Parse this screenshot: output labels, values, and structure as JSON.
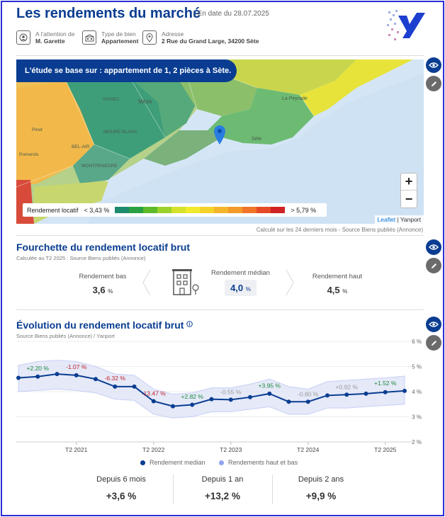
{
  "header": {
    "title": "Les rendements du marché",
    "date": "En date du 28.07.2025",
    "attention_label": "A l'attention de",
    "attention_value": "M. Garette",
    "type_label": "Type de bien",
    "type_value": "Appartement",
    "address_label": "Adresse",
    "address_value": "2 Rue du Grand Large, 34200 Sète"
  },
  "map": {
    "banner": "L'étude se base sur :  appartement de 1, 2 pièces à Sète.",
    "places": [
      "VISSEC",
      "Mèze",
      "La Peyrade",
      "Sète",
      "MOURE BLANC",
      "Pinet",
      "BEL-AIR",
      "MONTPENEDRE",
      "Pomerols"
    ],
    "legend_label": "Rendement locatif",
    "legend_min": "< 3,43 %",
    "legend_max": "> 5,79 %",
    "legend_colors": [
      "#1e8a6e",
      "#2aa043",
      "#5dbb2a",
      "#9bd12a",
      "#d4e22b",
      "#f1e92b",
      "#f5d22a",
      "#f5b52a",
      "#f39a2a",
      "#ef7529",
      "#e54a26",
      "#cf2222"
    ],
    "zoom_in": "+",
    "zoom_out": "−",
    "attribution_leaflet": "Leaflet",
    "attribution_sep": " | ",
    "attribution_yanport": "Yanport",
    "note": "Calculé sur les 24 derniers mois - Source Biens publiés (Annonce)"
  },
  "range": {
    "title": "Fourchette du rendement locatif brut",
    "subtitle": "Calculée au T2 2025 : Source Biens publiés (Annonce)",
    "low_label": "Rendement bas",
    "low_value": "3,6",
    "median_label": "Rendement médian",
    "median_value": "4,0",
    "high_label": "Rendement haut",
    "high_value": "4,5",
    "unit": "%"
  },
  "evolution": {
    "title": "Évolution du rendement locatif brut",
    "subtitle": "Source Biens publiés (Annonce) / Yanport",
    "legend_median": "Rendement median",
    "legend_band": "Rendements haut et bas"
  },
  "chart_data": {
    "type": "line",
    "x_ticks": [
      "T2 2021",
      "T2 2022",
      "T2 2023",
      "T2 2024",
      "T2 2025"
    ],
    "y_ticks": [
      "2 %",
      "3 %",
      "4 %",
      "5 %",
      "6 %"
    ],
    "ylim": [
      2,
      6
    ],
    "x": [
      2020.3,
      2020.55,
      2020.8,
      2021.05,
      2021.3,
      2021.55,
      2021.8,
      2022.05,
      2022.3,
      2022.55,
      2022.8,
      2023.05,
      2023.3,
      2023.55,
      2023.8,
      2024.05,
      2024.3,
      2024.55,
      2024.8,
      2025.05,
      2025.3
    ],
    "series": [
      {
        "name": "Rendement median",
        "values": [
          4.55,
          4.6,
          4.7,
          4.65,
          4.5,
          4.2,
          4.2,
          3.62,
          3.42,
          3.48,
          3.7,
          3.68,
          3.78,
          3.92,
          3.6,
          3.6,
          3.85,
          3.88,
          3.92,
          3.98,
          4.03
        ]
      },
      {
        "name": "Rendements haut et bas",
        "high": [
          5.05,
          5.2,
          5.25,
          5.2,
          5.0,
          4.7,
          4.65,
          4.1,
          3.9,
          3.95,
          4.15,
          4.15,
          4.3,
          4.5,
          4.2,
          4.1,
          4.4,
          4.45,
          4.5,
          4.55,
          4.62
        ],
        "low": [
          4.0,
          4.05,
          4.1,
          4.05,
          3.95,
          3.7,
          3.65,
          3.1,
          2.95,
          3.0,
          3.2,
          3.2,
          3.3,
          3.4,
          3.1,
          3.1,
          3.35,
          3.35,
          3.4,
          3.45,
          3.5
        ]
      }
    ],
    "annotations": [
      {
        "text": "+2.20 %",
        "x": 2020.55,
        "y": 4.85,
        "color": "#1a8a3a"
      },
      {
        "text": "-1.07 %",
        "x": 2021.05,
        "y": 4.9,
        "color": "#c21f2a"
      },
      {
        "text": "-6.32 %",
        "x": 2021.55,
        "y": 4.45,
        "color": "#c21f2a"
      },
      {
        "text": "-13.47 %",
        "x": 2022.05,
        "y": 3.85,
        "color": "#c21f2a"
      },
      {
        "text": "+2.82 %",
        "x": 2022.55,
        "y": 3.72,
        "color": "#1a8a3a"
      },
      {
        "text": "-0.55 %",
        "x": 2023.05,
        "y": 3.9,
        "color": "#9a9a9a"
      },
      {
        "text": "+3.95 %",
        "x": 2023.55,
        "y": 4.15,
        "color": "#1a8a3a"
      },
      {
        "text": "-0.80 %",
        "x": 2024.05,
        "y": 3.82,
        "color": "#9a9a9a"
      },
      {
        "text": "+0.92 %",
        "x": 2024.55,
        "y": 4.1,
        "color": "#9a9a9a"
      },
      {
        "text": "+1.52 %",
        "x": 2025.05,
        "y": 4.25,
        "color": "#1a8a3a"
      }
    ]
  },
  "stats": [
    {
      "label": "Depuis 6 mois",
      "value": "+3,6 %"
    },
    {
      "label": "Depuis 1 an",
      "value": "+13,2 %"
    },
    {
      "label": "Depuis 2 ans",
      "value": "+9,9 %"
    }
  ],
  "colors": {
    "brand": "#0a3d91",
    "frame": "#2b2fd6",
    "line": "#0a3d91",
    "band": "#dfe4f7"
  }
}
